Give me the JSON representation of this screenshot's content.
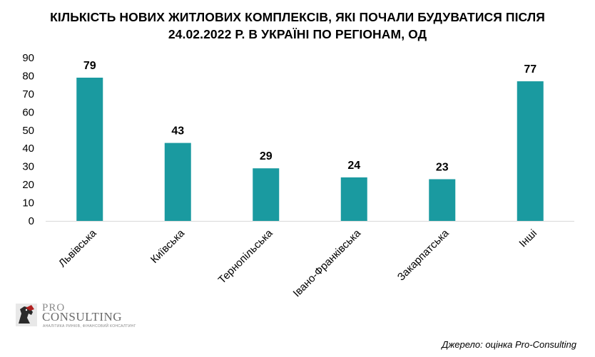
{
  "title_line1": "КІЛЬКІСТЬ НОВИХ ЖИТЛОВИХ КОМПЛЕКСІВ, ЯКІ ПОЧАЛИ БУДУВАТИСЯ ПІСЛЯ",
  "title_line2": "24.02.2022 Р. В УКРАЇНІ ПО РЕГІОНАМ, ОД",
  "source": "Джерело: оцінка Pro-Consulting",
  "logo": {
    "top_text": "PRO",
    "main_text": "CONSULTING",
    "tagline": "АНАЛІТИКА РИНКІВ, ФІНАНСОВИЙ КОНСАЛТИНГ"
  },
  "colors": {
    "bar": "#1a9aa0",
    "axis": "#d9d9d9"
  },
  "chart_data": {
    "type": "bar",
    "categories": [
      "Львівська",
      "Київська",
      "Тернопільська",
      "Івано-Франківська",
      "Закарпатська",
      "Інші"
    ],
    "values": [
      79,
      43,
      29,
      24,
      23,
      77
    ],
    "ylim": [
      0,
      90
    ],
    "yticks": [
      0,
      10,
      20,
      30,
      40,
      50,
      60,
      70,
      80,
      90
    ],
    "grid": false,
    "legend": "none"
  }
}
